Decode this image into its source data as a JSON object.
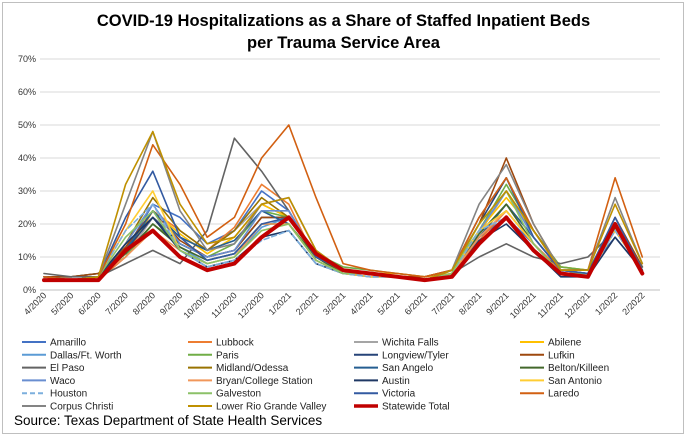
{
  "chart_data": {
    "type": "line",
    "title": "COVID-19 Hospitalizations as a Share of Staffed Inpatient Beds\nper Trauma Service Area",
    "xlabel": "",
    "ylabel": "",
    "x_ticks": [
      "4/2020",
      "5/2020",
      "6/2020",
      "7/2020",
      "8/2020",
      "9/2020",
      "10/2020",
      "11/2020",
      "12/2020",
      "1/2021",
      "2/2021",
      "3/2021",
      "4/2021",
      "5/2021",
      "6/2021",
      "7/2021",
      "8/2021",
      "9/2021",
      "10/2021",
      "11/2021",
      "12/2021",
      "1/2022",
      "2/2022"
    ],
    "y_ticks": [
      "0%",
      "10%",
      "20%",
      "30%",
      "40%",
      "50%",
      "60%",
      "70%"
    ],
    "ylim": [
      0,
      70
    ],
    "grid": "horizontal",
    "legend_position": "bottom",
    "series": [
      {
        "name": "Amarillo",
        "color": "#4472c4",
        "dash": false,
        "width": 1.6,
        "values": [
          4,
          3,
          4,
          12,
          26,
          22,
          14,
          18,
          30,
          24,
          10,
          5,
          5,
          4,
          3,
          5,
          16,
          22,
          14,
          6,
          6,
          16,
          6
        ]
      },
      {
        "name": "Lubbock",
        "color": "#ed7d31",
        "dash": false,
        "width": 1.6,
        "values": [
          3,
          3,
          3,
          10,
          24,
          18,
          12,
          19,
          32,
          26,
          9,
          5,
          5,
          4,
          3,
          5,
          15,
          24,
          14,
          6,
          6,
          18,
          6
        ]
      },
      {
        "name": "Wichita Falls",
        "color": "#a5a5a5",
        "dash": false,
        "width": 1.6,
        "values": [
          3,
          3,
          4,
          10,
          22,
          16,
          12,
          18,
          26,
          22,
          10,
          6,
          5,
          4,
          3,
          5,
          17,
          30,
          18,
          7,
          6,
          20,
          6
        ]
      },
      {
        "name": "Abilene",
        "color": "#ffc000",
        "dash": false,
        "width": 1.6,
        "values": [
          4,
          3,
          4,
          11,
          24,
          17,
          11,
          16,
          26,
          22,
          10,
          6,
          5,
          5,
          4,
          5,
          18,
          28,
          18,
          7,
          6,
          18,
          6
        ]
      },
      {
        "name": "Dallas/Ft. Worth",
        "color": "#5b9bd5",
        "dash": false,
        "width": 1.6,
        "values": [
          3,
          3,
          4,
          14,
          22,
          13,
          8,
          10,
          19,
          22,
          10,
          5,
          5,
          4,
          3,
          5,
          18,
          24,
          14,
          5,
          5,
          20,
          7
        ]
      },
      {
        "name": "Paris",
        "color": "#70ad47",
        "dash": false,
        "width": 1.6,
        "values": [
          4,
          4,
          5,
          10,
          20,
          14,
          10,
          14,
          24,
          22,
          11,
          7,
          6,
          5,
          4,
          6,
          18,
          32,
          18,
          7,
          6,
          19,
          7
        ]
      },
      {
        "name": "Longview/Tyler",
        "color": "#264478",
        "dash": false,
        "width": 1.6,
        "values": [
          4,
          4,
          5,
          12,
          22,
          14,
          10,
          12,
          22,
          22,
          10,
          6,
          5,
          4,
          3,
          6,
          20,
          34,
          18,
          6,
          5,
          20,
          6
        ]
      },
      {
        "name": "Lufkin",
        "color": "#9e480e",
        "dash": false,
        "width": 1.6,
        "values": [
          4,
          4,
          5,
          13,
          24,
          15,
          10,
          12,
          22,
          22,
          10,
          6,
          5,
          4,
          4,
          6,
          20,
          40,
          20,
          6,
          5,
          22,
          7
        ]
      },
      {
        "name": "El Paso",
        "color": "#636363",
        "dash": false,
        "width": 1.6,
        "values": [
          5,
          4,
          4,
          8,
          12,
          8,
          18,
          46,
          36,
          24,
          10,
          5,
          5,
          4,
          3,
          5,
          10,
          14,
          10,
          8,
          10,
          18,
          7
        ]
      },
      {
        "name": "Midland/Odessa",
        "color": "#997300",
        "dash": false,
        "width": 1.6,
        "values": [
          4,
          3,
          4,
          14,
          28,
          18,
          12,
          18,
          28,
          22,
          10,
          5,
          5,
          4,
          3,
          5,
          16,
          26,
          16,
          6,
          6,
          18,
          6
        ]
      },
      {
        "name": "San Angelo",
        "color": "#255e91",
        "dash": false,
        "width": 1.6,
        "values": [
          4,
          3,
          4,
          12,
          24,
          16,
          12,
          15,
          24,
          20,
          9,
          5,
          5,
          4,
          3,
          5,
          16,
          26,
          16,
          6,
          6,
          18,
          6
        ]
      },
      {
        "name": "Belton/Killeen",
        "color": "#43682b",
        "dash": false,
        "width": 1.6,
        "values": [
          3,
          3,
          4,
          11,
          20,
          13,
          9,
          11,
          20,
          20,
          10,
          5,
          5,
          4,
          3,
          5,
          17,
          26,
          14,
          5,
          5,
          19,
          6
        ]
      },
      {
        "name": "Waco",
        "color": "#698ed0",
        "dash": false,
        "width": 1.6,
        "values": [
          4,
          3,
          4,
          14,
          26,
          14,
          10,
          12,
          24,
          24,
          10,
          6,
          5,
          4,
          3,
          5,
          18,
          30,
          16,
          6,
          5,
          20,
          6
        ]
      },
      {
        "name": "Bryan/College Station",
        "color": "#f1975a",
        "dash": false,
        "width": 1.6,
        "values": [
          3,
          3,
          4,
          10,
          18,
          12,
          8,
          10,
          20,
          20,
          9,
          5,
          5,
          4,
          3,
          5,
          16,
          24,
          14,
          5,
          5,
          18,
          6
        ]
      },
      {
        "name": "Austin",
        "color": "#1f3864",
        "dash": false,
        "width": 1.6,
        "values": [
          3,
          3,
          4,
          14,
          22,
          12,
          7,
          9,
          16,
          18,
          8,
          5,
          4,
          4,
          3,
          4,
          15,
          20,
          12,
          4,
          4,
          16,
          6
        ]
      },
      {
        "name": "San Antonio",
        "color": "#ffcd33",
        "dash": false,
        "width": 1.6,
        "values": [
          3,
          3,
          4,
          18,
          30,
          12,
          8,
          10,
          18,
          20,
          9,
          5,
          4,
          4,
          3,
          5,
          18,
          24,
          14,
          5,
          4,
          18,
          6
        ]
      },
      {
        "name": "Houston",
        "color": "#7cafdd",
        "dash": true,
        "width": 1.6,
        "values": [
          3,
          3,
          4,
          18,
          26,
          12,
          7,
          9,
          15,
          18,
          8,
          5,
          4,
          4,
          3,
          5,
          18,
          22,
          12,
          5,
          4,
          18,
          6
        ]
      },
      {
        "name": "Galveston",
        "color": "#8cc168",
        "dash": false,
        "width": 1.6,
        "values": [
          3,
          3,
          4,
          16,
          24,
          12,
          8,
          10,
          18,
          20,
          9,
          5,
          5,
          4,
          3,
          5,
          20,
          30,
          14,
          5,
          5,
          20,
          6
        ]
      },
      {
        "name": "Victoria",
        "color": "#335aa1",
        "dash": false,
        "width": 1.6,
        "values": [
          3,
          3,
          4,
          22,
          36,
          16,
          9,
          11,
          20,
          22,
          10,
          6,
          5,
          4,
          3,
          6,
          22,
          34,
          16,
          6,
          5,
          22,
          6
        ]
      },
      {
        "name": "Laredo",
        "color": "#d26012",
        "dash": false,
        "width": 1.6,
        "values": [
          4,
          3,
          4,
          20,
          44,
          32,
          16,
          22,
          40,
          50,
          28,
          8,
          6,
          5,
          4,
          6,
          22,
          34,
          18,
          6,
          6,
          34,
          10
        ]
      },
      {
        "name": "Corpus Christi",
        "color": "#848484",
        "dash": false,
        "width": 1.6,
        "values": [
          3,
          3,
          4,
          26,
          48,
          24,
          12,
          14,
          26,
          28,
          12,
          6,
          5,
          4,
          3,
          6,
          26,
          38,
          20,
          6,
          6,
          28,
          8
        ]
      },
      {
        "name": "Lower Rio Grande Valley",
        "color": "#bf9000",
        "dash": false,
        "width": 1.6,
        "values": [
          3,
          3,
          4,
          32,
          48,
          26,
          14,
          16,
          26,
          28,
          12,
          6,
          5,
          4,
          3,
          6,
          20,
          30,
          18,
          6,
          6,
          26,
          8
        ]
      },
      {
        "name": "Statewide Total",
        "color": "#c00000",
        "dash": false,
        "width": 4,
        "values": [
          3,
          3,
          3,
          12,
          18,
          10,
          6,
          8,
          16,
          22,
          11,
          6,
          5,
          4,
          3,
          4,
          14,
          22,
          12,
          5,
          4,
          20,
          5
        ]
      }
    ]
  },
  "source": "Source: Texas Department of State Health Services"
}
